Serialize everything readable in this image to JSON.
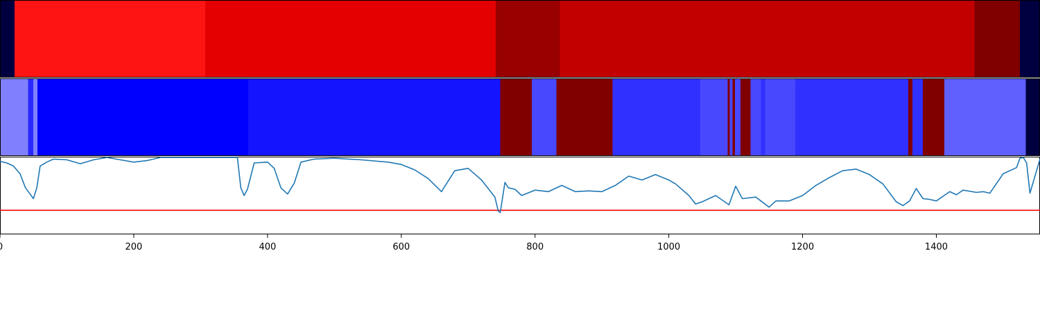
{
  "chart_data": [
    {
      "type": "heatmap",
      "xlim": [
        0,
        1555
      ],
      "segments": [
        {
          "start": 0,
          "end": 22,
          "color": "#000040"
        },
        {
          "start": 22,
          "end": 307,
          "color": "#ff1414"
        },
        {
          "start": 307,
          "end": 741,
          "color": "#e40000"
        },
        {
          "start": 741,
          "end": 837,
          "color": "#990000"
        },
        {
          "start": 837,
          "end": 1457,
          "color": "#c30000"
        },
        {
          "start": 1457,
          "end": 1525,
          "color": "#800000"
        },
        {
          "start": 1525,
          "end": 1555,
          "color": "#000040"
        }
      ]
    },
    {
      "type": "heatmap",
      "xlim": [
        0,
        1555
      ],
      "segments": [
        {
          "start": 0,
          "end": 42,
          "color": "#8080ff"
        },
        {
          "start": 42,
          "end": 50,
          "color": "#2828ff"
        },
        {
          "start": 50,
          "end": 56,
          "color": "#8080ff"
        },
        {
          "start": 56,
          "end": 371,
          "color": "#0000ff"
        },
        {
          "start": 371,
          "end": 748,
          "color": "#1414ff"
        },
        {
          "start": 748,
          "end": 795,
          "color": "#800000"
        },
        {
          "start": 795,
          "end": 832,
          "color": "#4848ff"
        },
        {
          "start": 832,
          "end": 916,
          "color": "#800000"
        },
        {
          "start": 916,
          "end": 1047,
          "color": "#3030ff"
        },
        {
          "start": 1047,
          "end": 1088,
          "color": "#4848ff"
        },
        {
          "start": 1088,
          "end": 1091,
          "color": "#800000"
        },
        {
          "start": 1091,
          "end": 1095,
          "color": "#4848ff"
        },
        {
          "start": 1095,
          "end": 1099,
          "color": "#800000"
        },
        {
          "start": 1099,
          "end": 1107,
          "color": "#4848ff"
        },
        {
          "start": 1107,
          "end": 1122,
          "color": "#800000"
        },
        {
          "start": 1122,
          "end": 1138,
          "color": "#4848ff"
        },
        {
          "start": 1138,
          "end": 1144,
          "color": "#3030ff"
        },
        {
          "start": 1144,
          "end": 1189,
          "color": "#4848ff"
        },
        {
          "start": 1189,
          "end": 1358,
          "color": "#3030ff"
        },
        {
          "start": 1358,
          "end": 1364,
          "color": "#800000"
        },
        {
          "start": 1364,
          "end": 1380,
          "color": "#3030ff"
        },
        {
          "start": 1380,
          "end": 1412,
          "color": "#800000"
        },
        {
          "start": 1412,
          "end": 1534,
          "color": "#6060ff"
        },
        {
          "start": 1534,
          "end": 1555,
          "color": "#000040"
        }
      ]
    },
    {
      "type": "line",
      "xlim": [
        0,
        1555
      ],
      "ylim": [
        0,
        1
      ],
      "line_color": "#1f77b4",
      "threshold": {
        "value": 0.31,
        "color": "#ff0000"
      },
      "x": [
        0,
        10,
        20,
        30,
        38,
        45,
        50,
        55,
        60,
        70,
        80,
        100,
        120,
        140,
        160,
        180,
        200,
        220,
        240,
        260,
        280,
        300,
        320,
        340,
        355,
        360,
        365,
        370,
        380,
        400,
        410,
        420,
        430,
        440,
        450,
        470,
        500,
        540,
        580,
        600,
        620,
        640,
        660,
        680,
        700,
        720,
        740,
        745,
        748,
        755,
        760,
        770,
        780,
        800,
        820,
        840,
        860,
        880,
        900,
        920,
        940,
        960,
        980,
        1000,
        1010,
        1030,
        1040,
        1050,
        1070,
        1090,
        1100,
        1110,
        1130,
        1150,
        1160,
        1180,
        1200,
        1220,
        1240,
        1260,
        1280,
        1300,
        1320,
        1340,
        1350,
        1360,
        1370,
        1380,
        1390,
        1400,
        1420,
        1430,
        1440,
        1460,
        1470,
        1480,
        1500,
        1520,
        1525,
        1530,
        1535,
        1540,
        1555
      ],
      "y": [
        0.94,
        0.92,
        0.88,
        0.78,
        0.6,
        0.52,
        0.46,
        0.6,
        0.88,
        0.93,
        0.97,
        0.96,
        0.91,
        0.96,
        0.99,
        0.96,
        0.93,
        0.95,
        0.99,
        0.99,
        0.99,
        0.99,
        0.99,
        0.99,
        0.99,
        0.6,
        0.5,
        0.58,
        0.92,
        0.93,
        0.85,
        0.6,
        0.52,
        0.66,
        0.93,
        0.97,
        0.98,
        0.96,
        0.93,
        0.9,
        0.83,
        0.72,
        0.55,
        0.82,
        0.85,
        0.7,
        0.48,
        0.3,
        0.28,
        0.67,
        0.6,
        0.58,
        0.5,
        0.57,
        0.55,
        0.63,
        0.55,
        0.56,
        0.55,
        0.63,
        0.75,
        0.7,
        0.77,
        0.7,
        0.65,
        0.5,
        0.39,
        0.42,
        0.5,
        0.38,
        0.62,
        0.46,
        0.48,
        0.35,
        0.43,
        0.43,
        0.5,
        0.63,
        0.73,
        0.82,
        0.84,
        0.77,
        0.65,
        0.42,
        0.37,
        0.43,
        0.59,
        0.46,
        0.45,
        0.43,
        0.55,
        0.51,
        0.57,
        0.54,
        0.55,
        0.53,
        0.78,
        0.86,
        0.98,
        0.99,
        0.92,
        0.53,
        0.97
      ],
      "xticks": [
        0,
        200,
        400,
        600,
        800,
        1000,
        1200,
        1400
      ],
      "xtick_labels": [
        "0",
        "200",
        "400",
        "600",
        "800",
        "1000",
        "1200",
        "1400"
      ]
    }
  ]
}
